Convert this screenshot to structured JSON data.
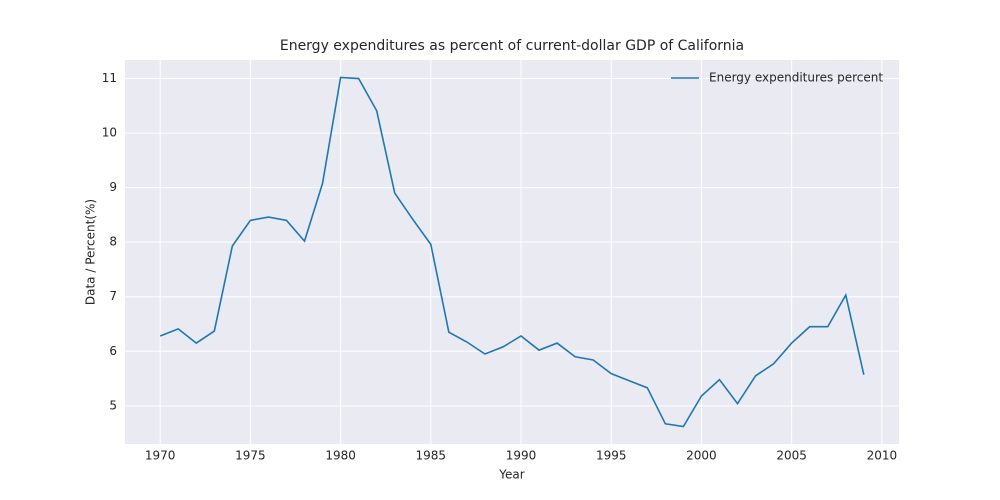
{
  "chart_data": {
    "type": "line",
    "title": "Energy expenditures as percent of current-dollar GDP of California",
    "xlabel": "Year",
    "ylabel": "Data / Percent(%)",
    "x": [
      1970,
      1971,
      1972,
      1973,
      1974,
      1975,
      1976,
      1977,
      1978,
      1979,
      1980,
      1981,
      1982,
      1983,
      1984,
      1985,
      1986,
      1987,
      1988,
      1989,
      1990,
      1991,
      1992,
      1993,
      1994,
      1995,
      1996,
      1997,
      1998,
      1999,
      2000,
      2001,
      2002,
      2003,
      2004,
      2005,
      2006,
      2007,
      2008,
      2009
    ],
    "series": [
      {
        "name": "Energy expenditures percent",
        "color": "#1f77b4",
        "values": [
          6.28,
          6.41,
          6.15,
          6.37,
          7.93,
          8.4,
          8.46,
          8.4,
          8.02,
          9.08,
          11.02,
          11.0,
          10.41,
          8.9,
          8.42,
          7.96,
          6.35,
          6.17,
          5.95,
          6.08,
          6.28,
          6.02,
          6.15,
          5.9,
          5.84,
          5.59,
          5.46,
          5.33,
          4.67,
          4.62,
          5.18,
          5.48,
          5.04,
          5.55,
          5.77,
          6.15,
          6.45,
          6.45,
          7.03,
          5.57
        ]
      }
    ],
    "xlim": [
      1968.05,
      2010.95
    ],
    "xticks": [
      1970,
      1975,
      1980,
      1985,
      1990,
      1995,
      2000,
      2005,
      2010
    ],
    "ylim": [
      4.3,
      11.34
    ],
    "yticks": [
      5,
      6,
      7,
      8,
      9,
      10,
      11
    ],
    "grid": true,
    "legend": "upper right"
  }
}
